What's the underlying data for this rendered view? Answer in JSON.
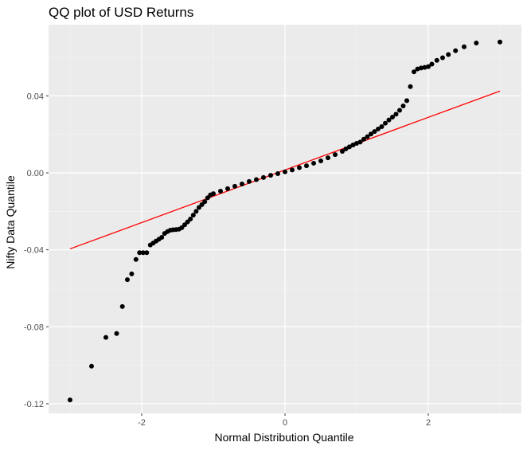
{
  "chart_data": {
    "type": "scatter",
    "title": "QQ plot of USD Returns",
    "xlabel": "Normal Distribution Quantile",
    "ylabel": "Nifty Data Quantile",
    "xlim": [
      -3.3,
      3.3
    ],
    "ylim": [
      -0.125,
      0.077
    ],
    "x_ticks": [
      -2,
      0,
      2
    ],
    "x_tick_labels": [
      "-2",
      "0",
      "2"
    ],
    "y_ticks": [
      -0.12,
      -0.08,
      -0.04,
      0.0,
      0.04
    ],
    "y_tick_labels": [
      "-0.12",
      "-0.08",
      "-0.04",
      "0.00",
      "0.04"
    ],
    "grid": true,
    "background": "#ebebeb",
    "point_color": "#000000",
    "reference_line": {
      "color": "#ff0000",
      "x": [
        -3.0,
        3.0
      ],
      "y": [
        -0.0395,
        0.0425
      ]
    },
    "points": [
      {
        "x": -3.0,
        "y": -0.118
      },
      {
        "x": -2.7,
        "y": -0.1005
      },
      {
        "x": -2.5,
        "y": -0.0855
      },
      {
        "x": -2.35,
        "y": -0.0835
      },
      {
        "x": -2.27,
        "y": -0.0695
      },
      {
        "x": -2.2,
        "y": -0.0555
      },
      {
        "x": -2.14,
        "y": -0.0525
      },
      {
        "x": -2.08,
        "y": -0.045
      },
      {
        "x": -2.03,
        "y": -0.0415
      },
      {
        "x": -1.98,
        "y": -0.0415
      },
      {
        "x": -1.93,
        "y": -0.0415
      },
      {
        "x": -1.88,
        "y": -0.0375
      },
      {
        "x": -1.84,
        "y": -0.0365
      },
      {
        "x": -1.8,
        "y": -0.0355
      },
      {
        "x": -1.76,
        "y": -0.0345
      },
      {
        "x": -1.72,
        "y": -0.0335
      },
      {
        "x": -1.68,
        "y": -0.0315
      },
      {
        "x": -1.64,
        "y": -0.0305
      },
      {
        "x": -1.6,
        "y": -0.0298
      },
      {
        "x": -1.56,
        "y": -0.0296
      },
      {
        "x": -1.52,
        "y": -0.0295
      },
      {
        "x": -1.48,
        "y": -0.0293
      },
      {
        "x": -1.44,
        "y": -0.0285
      },
      {
        "x": -1.4,
        "y": -0.027
      },
      {
        "x": -1.36,
        "y": -0.0255
      },
      {
        "x": -1.32,
        "y": -0.024
      },
      {
        "x": -1.28,
        "y": -0.022
      },
      {
        "x": -1.24,
        "y": -0.02
      },
      {
        "x": -1.2,
        "y": -0.018
      },
      {
        "x": -1.16,
        "y": -0.0165
      },
      {
        "x": -1.12,
        "y": -0.015
      },
      {
        "x": -1.08,
        "y": -0.013
      },
      {
        "x": -1.04,
        "y": -0.0115
      },
      {
        "x": -1.0,
        "y": -0.0108
      },
      {
        "x": -0.9,
        "y": -0.0095
      },
      {
        "x": -0.8,
        "y": -0.0082
      },
      {
        "x": -0.7,
        "y": -0.007
      },
      {
        "x": -0.6,
        "y": -0.0058
      },
      {
        "x": -0.5,
        "y": -0.0045
      },
      {
        "x": -0.4,
        "y": -0.0035
      },
      {
        "x": -0.3,
        "y": -0.0024
      },
      {
        "x": -0.2,
        "y": -0.0013
      },
      {
        "x": -0.1,
        "y": -0.0004
      },
      {
        "x": 0.0,
        "y": 0.0005
      },
      {
        "x": 0.1,
        "y": 0.0015
      },
      {
        "x": 0.2,
        "y": 0.0027
      },
      {
        "x": 0.3,
        "y": 0.0037
      },
      {
        "x": 0.4,
        "y": 0.005
      },
      {
        "x": 0.5,
        "y": 0.0062
      },
      {
        "x": 0.6,
        "y": 0.0078
      },
      {
        "x": 0.7,
        "y": 0.0095
      },
      {
        "x": 0.8,
        "y": 0.0112
      },
      {
        "x": 0.85,
        "y": 0.0125
      },
      {
        "x": 0.9,
        "y": 0.0135
      },
      {
        "x": 0.95,
        "y": 0.0145
      },
      {
        "x": 1.0,
        "y": 0.0153
      },
      {
        "x": 1.05,
        "y": 0.016
      },
      {
        "x": 1.1,
        "y": 0.0175
      },
      {
        "x": 1.15,
        "y": 0.0188
      },
      {
        "x": 1.2,
        "y": 0.0202
      },
      {
        "x": 1.25,
        "y": 0.0215
      },
      {
        "x": 1.3,
        "y": 0.0228
      },
      {
        "x": 1.35,
        "y": 0.024
      },
      {
        "x": 1.4,
        "y": 0.0258
      },
      {
        "x": 1.45,
        "y": 0.0275
      },
      {
        "x": 1.5,
        "y": 0.029
      },
      {
        "x": 1.55,
        "y": 0.0305
      },
      {
        "x": 1.6,
        "y": 0.0325
      },
      {
        "x": 1.65,
        "y": 0.0348
      },
      {
        "x": 1.7,
        "y": 0.0375
      },
      {
        "x": 1.75,
        "y": 0.0448
      },
      {
        "x": 1.8,
        "y": 0.0525
      },
      {
        "x": 1.85,
        "y": 0.054
      },
      {
        "x": 1.9,
        "y": 0.0545
      },
      {
        "x": 1.95,
        "y": 0.0548
      },
      {
        "x": 2.0,
        "y": 0.0552
      },
      {
        "x": 2.05,
        "y": 0.0565
      },
      {
        "x": 2.12,
        "y": 0.0585
      },
      {
        "x": 2.2,
        "y": 0.0598
      },
      {
        "x": 2.28,
        "y": 0.0615
      },
      {
        "x": 2.38,
        "y": 0.0635
      },
      {
        "x": 2.5,
        "y": 0.0655
      },
      {
        "x": 2.67,
        "y": 0.0675
      },
      {
        "x": 3.0,
        "y": 0.068
      }
    ]
  }
}
